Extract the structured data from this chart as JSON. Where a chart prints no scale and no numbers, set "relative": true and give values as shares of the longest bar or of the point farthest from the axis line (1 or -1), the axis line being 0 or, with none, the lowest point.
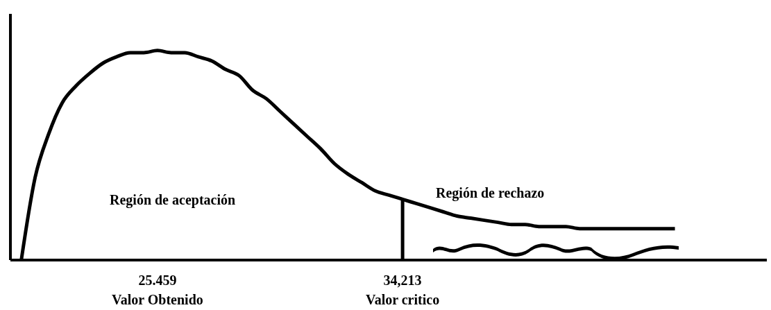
{
  "chart_data": {
    "type": "line",
    "relative": true,
    "color": "#000000",
    "marker": "none",
    "line_style": "solid",
    "categories": [
      null,
      null,
      null,
      null,
      null,
      null,
      null,
      null,
      null,
      null,
      "25.459",
      null,
      null,
      null,
      null,
      null,
      null,
      null,
      null,
      null,
      null,
      null,
      null,
      null,
      null,
      null,
      null,
      null,
      "34,213",
      null,
      null,
      null,
      null,
      null,
      null,
      null,
      null,
      null,
      null,
      null,
      null,
      null,
      null,
      null,
      null,
      null,
      null,
      null,
      null
    ],
    "values": [
      0,
      0.39,
      0.6,
      0.75,
      0.83,
      0.89,
      0.94,
      0.97,
      0.99,
      0.99,
      1,
      0.99,
      0.99,
      0.97,
      0.95,
      0.91,
      0.88,
      0.81,
      0.77,
      0.71,
      0.65,
      0.59,
      0.53,
      0.46,
      0.41,
      0.37,
      0.33,
      0.31,
      0.29,
      0.27,
      0.25,
      0.23,
      0.21,
      0.2,
      0.19,
      0.18,
      0.17,
      0.17,
      0.16,
      0.16,
      0.16,
      0.15,
      0.15,
      0.15,
      0.15,
      0.15,
      0.15,
      0.15,
      0.15
    ],
    "ref_lines": [
      {
        "axis": "x",
        "value": "34,213"
      }
    ],
    "annotations": [
      "Región de aceptación",
      "Región de rechazo",
      "Valor Obtenido",
      "Valor critico"
    ]
  }
}
